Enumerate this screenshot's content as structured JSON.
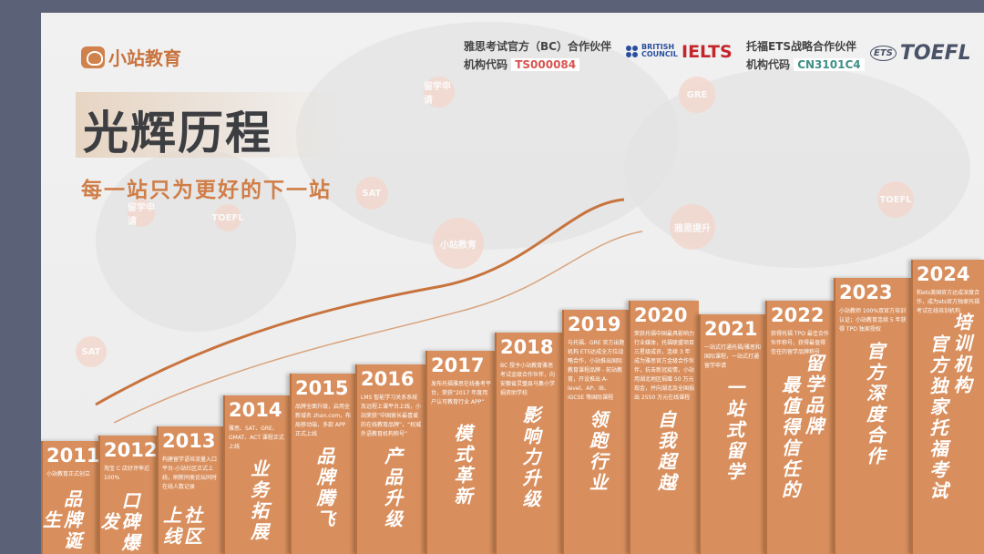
{
  "brand": {
    "logo_text": "小站教育",
    "title": "光辉历程",
    "subtitle": "每一站只为更好的下一站"
  },
  "partners": {
    "ielts": {
      "line1": "雅思考试官方（BC）合作伙伴",
      "code_label": "机构代码",
      "code": "TS000084",
      "bc_logo": "BRITISH COUNCIL",
      "ielts_logo": "IELTS",
      "code_color": "#d9534f"
    },
    "toefl": {
      "line1": "托福ETS战略合作伙伴",
      "code_label": "机构代码",
      "code": "CN3101C4",
      "ets_logo": "ETS",
      "toefl_logo": "TOEFL",
      "code_color": "#3f8f88"
    }
  },
  "bubbles": [
    "留学申请",
    "SAT",
    "TOEFL",
    "留学申请",
    "雅思提升",
    "TOEFL",
    "SAT",
    "小站教育",
    "GRE"
  ],
  "timeline": [
    {
      "year": "2011",
      "desc": "小站教育正式创立",
      "motto": [
        "品牌诞生"
      ]
    },
    {
      "year": "2012",
      "desc": "淘宝 C 店好评率近 100%",
      "motto": [
        "口碑爆发"
      ]
    },
    {
      "year": "2013",
      "desc": "构建留学语培流量入口平台-小站社区正式上线，刷新同类论坛同时在线人数记录",
      "motto": [
        "社区上线"
      ]
    },
    {
      "year": "2014",
      "desc": "雅思、SAT、GRE、GMAT、ACT 课程正式上线",
      "motto": [
        "业务拓展"
      ]
    },
    {
      "year": "2015",
      "desc": "品牌全面升级，启用全新域名 zhan.com，布局移动端，多款 APP 正式上线",
      "motto": [
        "品牌腾飞"
      ]
    },
    {
      "year": "2016",
      "desc": "LMS 智能学习关系系统及远程上课平台上线，小站荣获“中国家长最喜爱的在线教育品牌”，“权威外语教育机构称号”",
      "motto": [
        "产品升级"
      ]
    },
    {
      "year": "2017",
      "desc": "发布托福雅思在线备考平台，荣获“2017 年度用户认可教育行业 APP”",
      "motto": [
        "模式革新"
      ]
    },
    {
      "year": "2018",
      "desc": "BC 授予小站教育雅思考试金级合作伙伴，向安徽省灵璧县马集小学捐资助学校",
      "motto": [
        "影响力升级"
      ]
    },
    {
      "year": "2019",
      "desc": "与托福、GRE 官方出题机构 ETS达成全方位战略合作，小站推出国际教育课程品牌 - 前站教育，开设推出 A-level、AP、IB、IGCSE 等国际课程",
      "motto": [
        "领跑行业"
      ]
    },
    {
      "year": "2020",
      "desc": "荣获托福中国最具影响力行业媒体，托福联盟项目三星级成员，连续 3 年成为雅思官方金级合作伙伴，抗击新冠疫情，小站用湖北地区捐赠 50 万元现金，并向湖北及全国捐出 2550 万元在线课程",
      "motto": [
        "自我超越"
      ]
    },
    {
      "year": "2021",
      "desc": "一站式打通托福/雅思和国际课程，一站式打通留学申请",
      "motto": [
        "一站式留学"
      ]
    },
    {
      "year": "2022",
      "desc": "获得托福 TPO 最佳合作伙伴称号，获得最值得信任的留学品牌称号",
      "motto": [
        "最值得信任的",
        "留学品牌"
      ]
    },
    {
      "year": "2023",
      "desc": "小站教师 100%双官方培训认证；小站教育连续 5 年获得 TPO 独家授权",
      "motto": [
        "官方深度合作"
      ]
    },
    {
      "year": "2024",
      "desc": "和ets美国官方达成深度合作，成为ets官方独家托福考试在线培训机构",
      "motto": [
        "官方独家托福考试",
        "培训机构"
      ]
    }
  ],
  "colors": {
    "accent": "#d98f5d",
    "title": "#3d3e42",
    "subtitle": "#d07e48",
    "frame": "#5b6278"
  }
}
